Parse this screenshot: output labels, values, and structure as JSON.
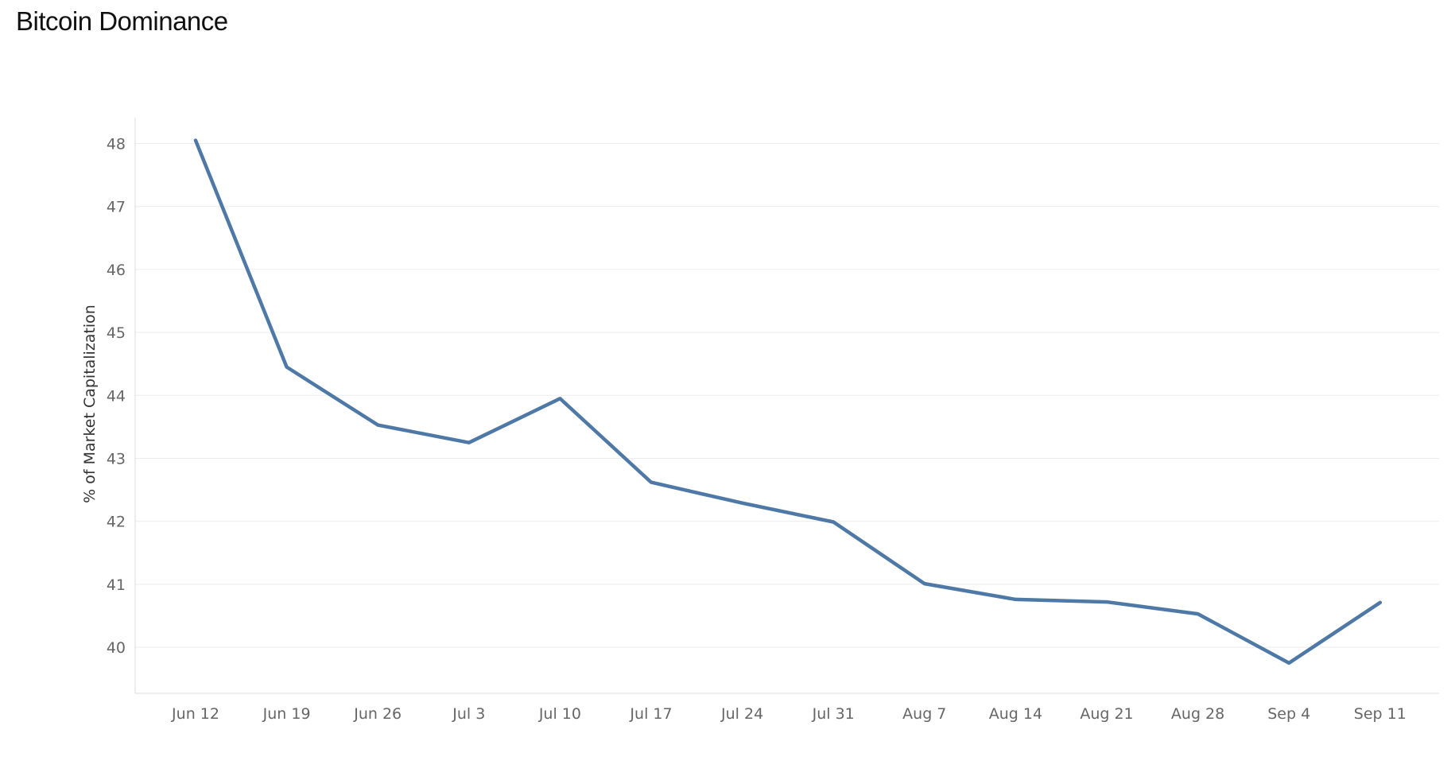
{
  "title": "Bitcoin Dominance",
  "chart_data": {
    "type": "line",
    "title": "Bitcoin Dominance",
    "xlabel": "",
    "ylabel": "% of Market Capitalization",
    "x": [
      "Jun 12",
      "Jun 19",
      "Jun 26",
      "Jul 3",
      "Jul 10",
      "Jul 17",
      "Jul 24",
      "Jul 31",
      "Aug 7",
      "Aug 14",
      "Aug 21",
      "Aug 28",
      "Sep 4",
      "Sep 11"
    ],
    "series": [
      {
        "values": [
          48.05,
          44.45,
          43.53,
          43.25,
          43.95,
          42.62,
          42.29,
          41.99,
          41.01,
          40.76,
          40.72,
          40.53,
          39.75,
          40.71
        ],
        "color": "#4e79a7"
      }
    ],
    "y_ticks": [
      "40",
      "41",
      "42",
      "43",
      "44",
      "45",
      "46",
      "47",
      "48"
    ],
    "ylim": [
      39.3,
      48.5
    ],
    "grid": true,
    "legend": "none"
  }
}
